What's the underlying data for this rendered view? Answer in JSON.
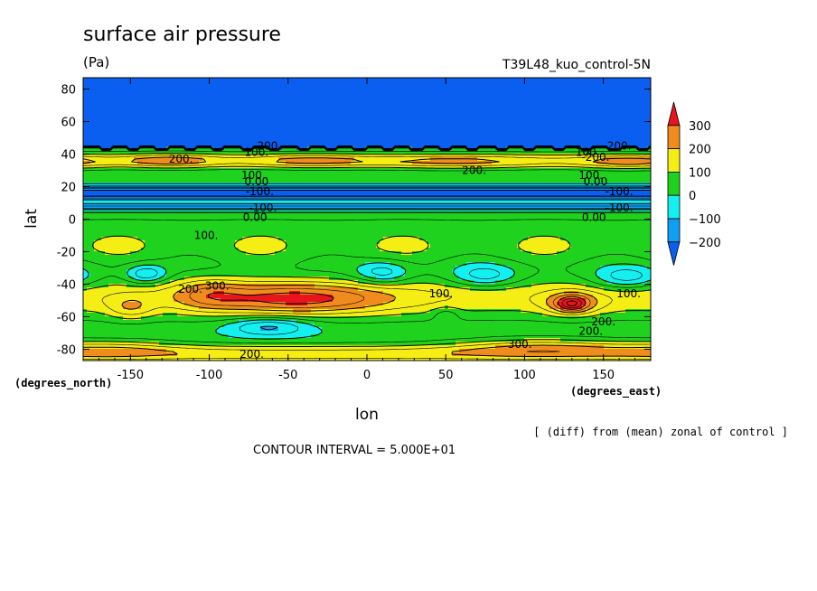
{
  "chart_data": {
    "type": "heatmap",
    "title": "surface air pressure",
    "units": "(Pa)",
    "run_label": "T39L48_kuo_control-5N",
    "xlabel": "lon",
    "ylabel": "lat",
    "xunits": "(degrees_east)",
    "yunits": "(degrees_north)",
    "xlim": [
      -180,
      180
    ],
    "ylim": [
      -87,
      87
    ],
    "xticks": [
      -150,
      -100,
      -50,
      0,
      50,
      100,
      150
    ],
    "yticks": [
      -80,
      -60,
      -40,
      -20,
      0,
      20,
      40,
      60,
      80
    ],
    "note": "[ (diff) from (mean) zonal of control ]",
    "contour_interval": "CONTOUR INTERVAL = 5.000E+01",
    "colorbar": {
      "labels": [
        "300",
        "200",
        "100",
        "0",
        "−100",
        "−200"
      ],
      "bins": [
        {
          "min": 300,
          "color": "#e8141e"
        },
        {
          "min": 200,
          "max": 300,
          "color": "#f08c1e"
        },
        {
          "min": 100,
          "max": 200,
          "color": "#f5ee14"
        },
        {
          "min": 0,
          "max": 100,
          "color": "#1ed21e"
        },
        {
          "min": -100,
          "max": 0,
          "color": "#14f0f0"
        },
        {
          "min": -200,
          "max": -100,
          "color": "#0fa0f5"
        },
        {
          "max": -200,
          "color": "#0a5ff0"
        }
      ]
    },
    "contour_labels": [
      {
        "text": "200.",
        "lon": -62,
        "lat": 45
      },
      {
        "text": "100.",
        "lon": -70,
        "lat": 41
      },
      {
        "text": "200.",
        "lon": -118,
        "lat": 37
      },
      {
        "text": "200.",
        "lon": 68,
        "lat": 30
      },
      {
        "text": "200.",
        "lon": 160,
        "lat": 45
      },
      {
        "text": "100.",
        "lon": 140,
        "lat": 41
      },
      {
        "text": "-200.",
        "lon": 145,
        "lat": 38
      },
      {
        "text": "100.",
        "lon": -72,
        "lat": 27
      },
      {
        "text": "0.00",
        "lon": -70,
        "lat": 23
      },
      {
        "text": "100.",
        "lon": 142,
        "lat": 27
      },
      {
        "text": "0.00",
        "lon": 145,
        "lat": 23
      },
      {
        "text": "-100.",
        "lon": -68,
        "lat": 17
      },
      {
        "text": "-100.",
        "lon": 160,
        "lat": 17
      },
      {
        "text": "-100.",
        "lon": -66,
        "lat": 7
      },
      {
        "text": "-100.",
        "lon": 160,
        "lat": 7
      },
      {
        "text": "0.00",
        "lon": -71,
        "lat": 1
      },
      {
        "text": "0.00",
        "lon": 144,
        "lat": 1
      },
      {
        "text": "100.",
        "lon": -102,
        "lat": -10
      },
      {
        "text": "200.",
        "lon": -112,
        "lat": -43
      },
      {
        "text": "300.",
        "lon": -95,
        "lat": -41
      },
      {
        "text": "100.",
        "lon": 47,
        "lat": -46
      },
      {
        "text": "100.",
        "lon": 166,
        "lat": -46
      },
      {
        "text": "200.",
        "lon": 150,
        "lat": -63
      },
      {
        "text": "200.",
        "lon": 142,
        "lat": -69
      },
      {
        "text": "300.",
        "lon": 97,
        "lat": -77
      },
      {
        "text": "200.",
        "lon": -73,
        "lat": -83
      }
    ]
  }
}
